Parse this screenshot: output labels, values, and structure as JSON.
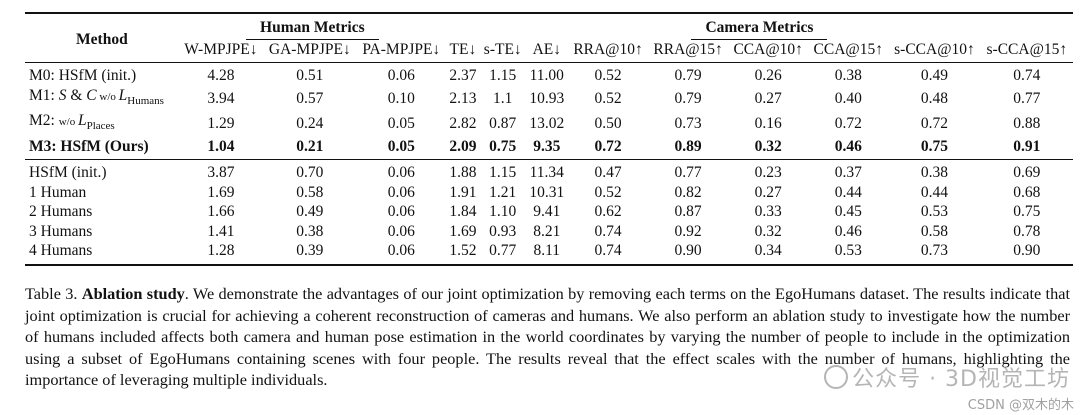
{
  "table": {
    "method_header": "Method",
    "human_group": "Human Metrics",
    "camera_group": "Camera Metrics",
    "columns": [
      "W-MPJPE↓",
      "GA-MPJPE↓",
      "PA-MPJPE↓",
      "TE↓",
      "s-TE↓",
      "AE↓",
      "RRA@10↑",
      "RRA@15↑",
      "CCA@10↑",
      "CCA@15↑",
      "s-CCA@10↑",
      "s-CCA@15↑"
    ],
    "m1_label": {
      "pre": "M1: ",
      "s": "S",
      "amp": " & ",
      "c": "C",
      "wo": " w/o ",
      "L": "L",
      "sub": "Humans"
    },
    "m2_label": {
      "pre": "M2: ",
      "wo": "w/o ",
      "L": "L",
      "sub": "Places"
    },
    "rows_a": [
      {
        "method": "M0: HSfM (init.)",
        "values": [
          "4.28",
          "0.51",
          "0.06",
          "2.37",
          "1.15",
          "11.00",
          "0.52",
          "0.79",
          "0.26",
          "0.38",
          "0.49",
          "0.74"
        ]
      },
      {
        "method": "M1",
        "values": [
          "3.94",
          "0.57",
          "0.10",
          "2.13",
          "1.1",
          "10.93",
          "0.52",
          "0.79",
          "0.27",
          "0.40",
          "0.48",
          "0.77"
        ]
      },
      {
        "method": "M2",
        "values": [
          "1.29",
          "0.24",
          "0.05",
          "2.82",
          "0.87",
          "13.02",
          "0.50",
          "0.73",
          "0.16",
          "0.72",
          "0.72",
          "0.88"
        ]
      },
      {
        "method": "M3: HSfM (Ours)",
        "values": [
          "1.04",
          "0.21",
          "0.05",
          "2.09",
          "0.75",
          "9.35",
          "0.72",
          "0.89",
          "0.32",
          "0.46",
          "0.75",
          "0.91"
        ]
      }
    ],
    "rows_b": [
      {
        "method": "HSfM (init.)",
        "values": [
          "3.87",
          "0.70",
          "0.06",
          "1.88",
          "1.15",
          "11.34",
          "0.47",
          "0.77",
          "0.23",
          "0.37",
          "0.38",
          "0.69"
        ]
      },
      {
        "method": "1 Human",
        "values": [
          "1.69",
          "0.58",
          "0.06",
          "1.91",
          "1.21",
          "10.31",
          "0.52",
          "0.82",
          "0.27",
          "0.44",
          "0.44",
          "0.68"
        ]
      },
      {
        "method": "2 Humans",
        "values": [
          "1.66",
          "0.49",
          "0.06",
          "1.84",
          "1.10",
          "9.41",
          "0.62",
          "0.87",
          "0.33",
          "0.45",
          "0.53",
          "0.75"
        ]
      },
      {
        "method": "3 Humans",
        "values": [
          "1.41",
          "0.38",
          "0.06",
          "1.69",
          "0.93",
          "8.21",
          "0.74",
          "0.92",
          "0.32",
          "0.46",
          "0.58",
          "0.78"
        ]
      },
      {
        "method": "4 Humans",
        "values": [
          "1.28",
          "0.39",
          "0.06",
          "1.52",
          "0.77",
          "8.11",
          "0.74",
          "0.90",
          "0.34",
          "0.53",
          "0.73",
          "0.90"
        ]
      }
    ],
    "bold_b": [
      [],
      [
        2
      ],
      [
        2
      ],
      [
        1,
        2,
        7
      ],
      [
        0,
        2,
        3,
        4,
        5,
        6,
        8,
        9,
        10,
        11
      ]
    ]
  },
  "caption": {
    "label": "Table 3.",
    "title": "Ablation study",
    "text": ". We demonstrate the advantages of our joint optimization by removing each terms on the EgoHumans dataset. The results indicate that joint optimization is crucial for achieving a coherent reconstruction of cameras and humans. We also perform an ablation study to investigate how the number of humans included affects both camera and human pose estimation in the world coordinates by varying the number of people to include in the optimization using a subset of EgoHumans containing scenes with four people. The results reveal that the effect scales with the number of humans, highlighting the importance of leveraging multiple individuals."
  },
  "watermark": {
    "main": "公众号 · 3D视觉工坊",
    "sub": "CSDN @双木的木"
  }
}
